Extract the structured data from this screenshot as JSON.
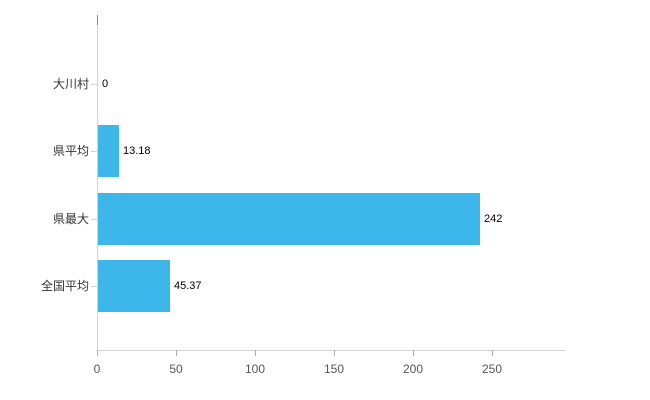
{
  "chart_data": {
    "type": "bar",
    "orientation": "horizontal",
    "title": "",
    "xlabel": "",
    "ylabel": "",
    "categories": [
      "大川村",
      "県平均",
      "県最大",
      "全国平均"
    ],
    "values": [
      0,
      13.18,
      242,
      45.37
    ],
    "value_labels": [
      "0",
      "13.18",
      "242",
      "45.37"
    ],
    "x_ticks": [
      0,
      50,
      100,
      150,
      200,
      250
    ],
    "xlim": [
      0,
      296
    ],
    "grid": false,
    "legend": "none",
    "bar_color": "#3db7ea",
    "axis_color": "#d3d3d3",
    "tick_color": "#aaaaaa",
    "tick_label_color": "#555555",
    "category_label_color": "#333333",
    "value_label_color": "#000000"
  }
}
